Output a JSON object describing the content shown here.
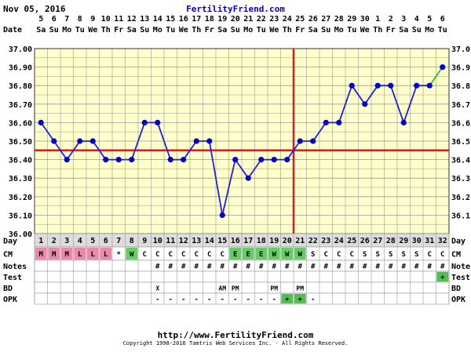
{
  "header": {
    "date": "Nov 05, 2016",
    "site": "FertilityFriend.com"
  },
  "footer": {
    "url": "http://www.FertilityFriend.com",
    "copyright": "Copyright 1998-2016 Tamtris Web Services Inc. - All Rights Reserved."
  },
  "chart_data": {
    "type": "line",
    "title": "",
    "xlabel": "Day",
    "ylabel": "",
    "ylim": [
      36.0,
      37.0
    ],
    "y_ticks_left": [
      "36.00",
      "36.10",
      "36.20",
      "36.30",
      "36.40",
      "36.50",
      "36.60",
      "36.70",
      "36.80",
      "36.90",
      "37.00"
    ],
    "y_ticks_right": [
      "36.1",
      "36.2",
      "36.3",
      "36.4",
      "36.5",
      "36.6",
      "36.7",
      "36.8",
      "36.9",
      "37.0"
    ],
    "row_labels": [
      "Date",
      "Day",
      "CM",
      "Notes",
      "Test",
      "BD",
      "OPK"
    ],
    "dates": [
      "5",
      "6",
      "7",
      "8",
      "9",
      "10",
      "11",
      "12",
      "13",
      "14",
      "15",
      "16",
      "17",
      "18",
      "19",
      "20",
      "21",
      "22",
      "23",
      "24",
      "25",
      "26",
      "27",
      "28",
      "29",
      "30",
      "1",
      "2",
      "3",
      "4",
      "5",
      "6"
    ],
    "weekdays": [
      "Sa",
      "Su",
      "Mo",
      "Tu",
      "We",
      "Th",
      "Fr",
      "Sa",
      "Su",
      "Mo",
      "Tu",
      "We",
      "Th",
      "Fr",
      "Sa",
      "Su",
      "Mo",
      "Tu",
      "We",
      "Th",
      "Fr",
      "Sa",
      "Su",
      "Mo",
      "Tu",
      "We",
      "Th",
      "Fr",
      "Sa",
      "Su",
      "Mo",
      "Tu"
    ],
    "days": [
      "1",
      "2",
      "3",
      "4",
      "5",
      "6",
      "7",
      "8",
      "9",
      "10",
      "11",
      "12",
      "13",
      "14",
      "15",
      "16",
      "17",
      "18",
      "19",
      "20",
      "21",
      "22",
      "23",
      "24",
      "25",
      "26",
      "27",
      "28",
      "29",
      "30",
      "31",
      "32"
    ],
    "series": [
      {
        "values": [
          36.6,
          36.5,
          36.4,
          36.5,
          36.5,
          36.4,
          36.4,
          36.4,
          36.6,
          36.6,
          36.4,
          36.4,
          36.5,
          36.5,
          36.1,
          36.4,
          36.3,
          36.4,
          36.4,
          36.4,
          36.5,
          36.5,
          36.6,
          36.6,
          36.8,
          36.7,
          36.8,
          36.8,
          36.6,
          36.8,
          36.8,
          36.9
        ],
        "color": "#2222cc"
      }
    ],
    "last_segment_color": "#33bb33",
    "coverline": 36.45,
    "ovulation_day": 20,
    "line_color": "#cc2222",
    "point_color": "#0000cc",
    "plot_bg": "#ffffcc",
    "grid_color": "#999999",
    "grid": true,
    "legend": "none",
    "cm": [
      "M",
      "M",
      "M",
      "L",
      "L",
      "L",
      "*",
      "W",
      "C",
      "C",
      "C",
      "C",
      "C",
      "C",
      "C",
      "E",
      "E",
      "E",
      "W",
      "W",
      "W",
      "S",
      "C",
      "C",
      "C",
      "S",
      "S",
      "S",
      "S",
      "S",
      "C",
      "C"
    ],
    "cm_colors": {
      "M": "#ee88aa",
      "L": "#ee88aa",
      "W": "#66cc66",
      "E": "#66cc66"
    },
    "notes": [
      "",
      "",
      "",
      "",
      "",
      "",
      "",
      "",
      "",
      "#",
      "#",
      "#",
      "#",
      "#",
      "#",
      "#",
      "#",
      "#",
      "#",
      "#",
      "#",
      "#",
      "#",
      "#",
      "#",
      "#",
      "#",
      "#",
      "#",
      "#",
      "#",
      "#"
    ],
    "test": [
      "",
      "",
      "",
      "",
      "",
      "",
      "",
      "",
      "",
      "",
      "",
      "",
      "",
      "",
      "",
      "",
      "",
      "",
      "",
      "",
      "",
      "",
      "",
      "",
      "",
      "",
      "",
      "",
      "",
      "",
      "",
      "+"
    ],
    "bd": [
      "",
      "",
      "",
      "",
      "",
      "",
      "",
      "",
      "",
      "X",
      "",
      "",
      "",
      "",
      "AM",
      "PM",
      "",
      "",
      "PM",
      "",
      "PM",
      "",
      "",
      "",
      "",
      "",
      "",
      "",
      "",
      "",
      "",
      ""
    ],
    "opk": [
      "",
      "",
      "",
      "",
      "",
      "",
      "",
      "",
      "",
      "-",
      "-",
      "-",
      "-",
      "-",
      "-",
      "-",
      "-",
      "-",
      "-",
      "+",
      "+",
      "-",
      "",
      "",
      "",
      "",
      "",
      "",
      "",
      "",
      "",
      ""
    ],
    "plus_color": "#55bb55"
  }
}
